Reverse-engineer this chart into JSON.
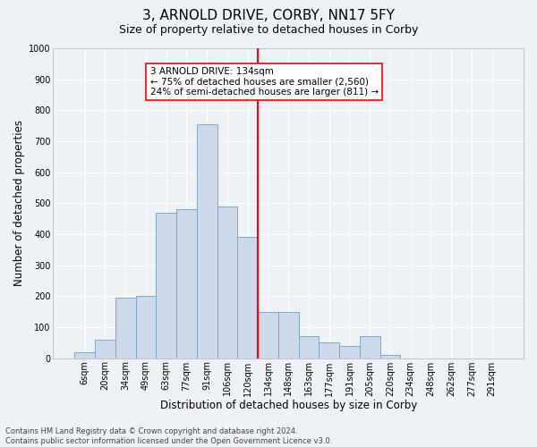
{
  "title": "3, ARNOLD DRIVE, CORBY, NN17 5FY",
  "subtitle": "Size of property relative to detached houses in Corby",
  "xlabel": "Distribution of detached houses by size in Corby",
  "ylabel": "Number of detached properties",
  "categories": [
    "6sqm",
    "20sqm",
    "34sqm",
    "49sqm",
    "63sqm",
    "77sqm",
    "91sqm",
    "106sqm",
    "120sqm",
    "134sqm",
    "148sqm",
    "163sqm",
    "177sqm",
    "191sqm",
    "205sqm",
    "220sqm",
    "234sqm",
    "248sqm",
    "262sqm",
    "277sqm",
    "291sqm"
  ],
  "values": [
    20,
    60,
    195,
    200,
    470,
    480,
    755,
    490,
    390,
    150,
    150,
    70,
    50,
    40,
    70,
    10,
    0,
    0,
    0,
    0,
    0
  ],
  "bar_color": "#ccdaeb",
  "bar_edge_color": "#7aaac8",
  "vline_index": 9,
  "vline_color": "red",
  "annotation_text": "3 ARNOLD DRIVE: 134sqm\n← 75% of detached houses are smaller (2,560)\n24% of semi-detached houses are larger (811) →",
  "annotation_box_color": "white",
  "annotation_box_edge": "red",
  "footer": "Contains HM Land Registry data © Crown copyright and database right 2024.\nContains public sector information licensed under the Open Government Licence v3.0.",
  "ylim": [
    0,
    1000
  ],
  "yticks": [
    0,
    100,
    200,
    300,
    400,
    500,
    600,
    700,
    800,
    900,
    1000
  ],
  "background_color": "#eef2f7",
  "grid_color": "#ffffff",
  "title_fontsize": 11,
  "subtitle_fontsize": 9,
  "xlabel_fontsize": 8.5,
  "ylabel_fontsize": 8.5,
  "tick_fontsize": 7,
  "annotation_fontsize": 7.5,
  "footer_fontsize": 6
}
